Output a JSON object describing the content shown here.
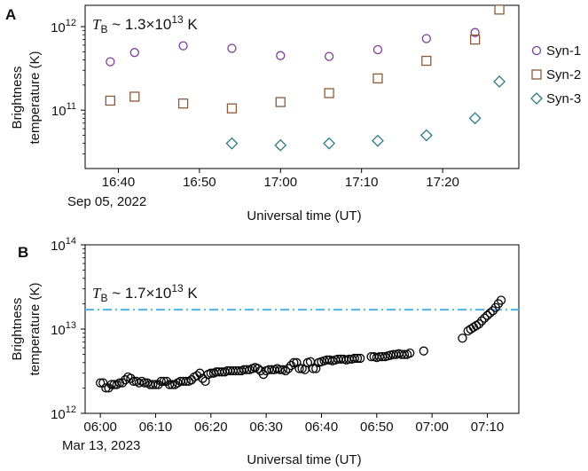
{
  "chart_data": [
    {
      "type": "scatter",
      "panel_label": "A",
      "annotation": {
        "prefix": "T",
        "subscript": "B",
        "text": " ~ 1.3×10",
        "exponent": "13",
        "unit": " K"
      },
      "ylabel_lines": [
        "Brightness",
        "temperature (K)"
      ],
      "xlabel": "Universal time (UT)",
      "date_label": "Sep 05, 2022",
      "yscale": "log",
      "ylim": [
        20000000000,
        1800000000000
      ],
      "xlim": [
        "16:35:54",
        "17:29:24"
      ],
      "ytick_major": [
        {
          "value": 100000000000,
          "base": "10",
          "exp": "11"
        },
        {
          "value": 1000000000000,
          "base": "10",
          "exp": "12"
        }
      ],
      "xticks": [
        "16:40",
        "16:50",
        "17:00",
        "17:10",
        "17:20"
      ],
      "legend": {
        "position": "right"
      },
      "series": [
        {
          "name": "Syn-1",
          "marker": "circle",
          "color": "#7a3d99",
          "x": [
            "16:39",
            "16:42",
            "16:48",
            "16:54",
            "17:00",
            "17:06",
            "17:12",
            "17:18",
            "17:24"
          ],
          "y": [
            380000000000,
            490000000000,
            590000000000,
            550000000000,
            450000000000,
            440000000000,
            530000000000,
            720000000000,
            850000000000
          ]
        },
        {
          "name": "Syn-2",
          "marker": "square",
          "color": "#8b5a3a",
          "x": [
            "16:39",
            "16:42",
            "16:48",
            "16:54",
            "17:00",
            "17:06",
            "17:12",
            "17:18",
            "17:24",
            "17:27"
          ],
          "y": [
            130000000000,
            145000000000,
            120000000000,
            105000000000,
            125000000000,
            160000000000,
            240000000000,
            390000000000,
            700000000000,
            1600000000000
          ]
        },
        {
          "name": "Syn-3",
          "marker": "diamond",
          "color": "#2a7a85",
          "x": [
            "16:54",
            "17:00",
            "17:06",
            "17:12",
            "17:18",
            "17:24",
            "17:27"
          ],
          "y": [
            40000000000,
            38000000000,
            40000000000,
            43000000000,
            50000000000,
            80000000000,
            220000000000
          ]
        }
      ]
    },
    {
      "type": "scatter",
      "panel_label": "B",
      "annotation": {
        "prefix": "T",
        "subscript": "B",
        "text": " ~ 1.7×10",
        "exponent": "13",
        "unit": " K"
      },
      "hline": {
        "value": 17000000000000,
        "color": "#4db3e6",
        "style": "dash-dot"
      },
      "ylabel_lines": [
        "Brightness",
        "temperature (K)"
      ],
      "xlabel": "Universal time (UT)",
      "date_label": "Mar 13, 2023",
      "yscale": "log",
      "ylim": [
        1000000000000,
        100000000000000
      ],
      "xlim": [
        "05:57:15",
        "07:15:42"
      ],
      "ytick_major": [
        {
          "value": 1000000000000,
          "base": "10",
          "exp": "12"
        },
        {
          "value": 10000000000000,
          "base": "10",
          "exp": "13"
        },
        {
          "value": 100000000000000,
          "base": "10",
          "exp": "14"
        }
      ],
      "xticks": [
        "06:00",
        "06:10",
        "06:20",
        "06:30",
        "06:40",
        "06:50",
        "07:00",
        "07:10"
      ],
      "series": [
        {
          "marker": "circle",
          "color": "#000000",
          "x_min": [
            0.0,
            0.5,
            1.0,
            1.5,
            2.0,
            2.5,
            3.0,
            3.5,
            4.0,
            4.5,
            5.0,
            5.5,
            6.0,
            6.5,
            7.0,
            7.5,
            8.0,
            8.5,
            9.0,
            9.5,
            10.0,
            10.5,
            11.0,
            11.5,
            12.0,
            12.5,
            13.0,
            13.5,
            14.0,
            14.5,
            15.0,
            15.5,
            16.0,
            16.5,
            17.0,
            17.5,
            18.0,
            18.5,
            19.0,
            19.5,
            20.0,
            20.5,
            21.0,
            21.5,
            22.0,
            22.5,
            23.0,
            23.5,
            24.0,
            24.5,
            25.0,
            25.5,
            26.0,
            26.5,
            27.0,
            27.5,
            28.0,
            28.5,
            29.0,
            29.5,
            30.0,
            30.5,
            31.0,
            31.5,
            32.0,
            32.5,
            33.0,
            33.5,
            34.0,
            34.5,
            35.0,
            35.5,
            36.0,
            36.5,
            37.0,
            37.5,
            38.0,
            38.5,
            39.0,
            39.5,
            40.0,
            40.5,
            41.0,
            41.5,
            42.0,
            42.5,
            43.0,
            43.5,
            44.0,
            44.5,
            45.0,
            45.5,
            46.0,
            46.5,
            47.0,
            49.0,
            49.5,
            50.0,
            50.5,
            51.0,
            51.5,
            52.0,
            52.5,
            53.0,
            53.5,
            54.0,
            54.5,
            55.0,
            55.5,
            56.0,
            58.5,
            65.5,
            66.5,
            67.0,
            67.5,
            68.0,
            68.5,
            69.0,
            69.5,
            70.0,
            70.5,
            71.0,
            71.5,
            72.0,
            72.5
          ],
          "y": [
            2300000000000,
            2300000000000,
            2000000000000,
            2000000000000,
            2200000000000,
            2200000000000,
            2200000000000,
            2300000000000,
            2300000000000,
            2500000000000,
            2700000000000,
            2600000000000,
            2400000000000,
            2400000000000,
            2300000000000,
            2400000000000,
            2300000000000,
            2300000000000,
            2200000000000,
            2200000000000,
            2200000000000,
            2200000000000,
            2400000000000,
            2400000000000,
            2400000000000,
            2200000000000,
            2200000000000,
            2200000000000,
            2300000000000,
            2400000000000,
            2400000000000,
            2400000000000,
            2400000000000,
            2500000000000,
            2700000000000,
            2800000000000,
            3000000000000,
            2600000000000,
            2400000000000,
            2900000000000,
            3000000000000,
            3000000000000,
            3100000000000,
            3100000000000,
            3100000000000,
            3100000000000,
            3200000000000,
            3200000000000,
            3200000000000,
            3200000000000,
            3200000000000,
            3200000000000,
            3300000000000,
            3300000000000,
            3300000000000,
            3400000000000,
            3500000000000,
            3400000000000,
            3200000000000,
            2900000000000,
            3200000000000,
            3300000000000,
            3300000000000,
            3300000000000,
            3400000000000,
            3300000000000,
            3300000000000,
            3200000000000,
            3400000000000,
            3700000000000,
            4000000000000,
            4000000000000,
            3400000000000,
            3400000000000,
            3300000000000,
            4000000000000,
            4100000000000,
            3400000000000,
            3400000000000,
            4000000000000,
            4100000000000,
            4200000000000,
            4300000000000,
            4300000000000,
            4200000000000,
            4300000000000,
            4400000000000,
            4400000000000,
            4400000000000,
            4300000000000,
            4400000000000,
            4400000000000,
            4500000000000,
            4500000000000,
            4500000000000,
            4700000000000,
            4700000000000,
            4600000000000,
            4700000000000,
            4700000000000,
            4700000000000,
            4800000000000,
            4900000000000,
            5000000000000,
            5000000000000,
            5100000000000,
            5000000000000,
            5000000000000,
            5000000000000,
            5200000000000,
            5500000000000,
            7800000000000,
            9500000000000,
            10000000000000,
            10500000000000,
            11000000000000,
            11500000000000,
            12500000000000,
            13500000000000,
            14500000000000,
            15500000000000,
            16500000000000,
            18000000000000,
            20000000000000,
            22000000000000
          ]
        }
      ]
    }
  ]
}
